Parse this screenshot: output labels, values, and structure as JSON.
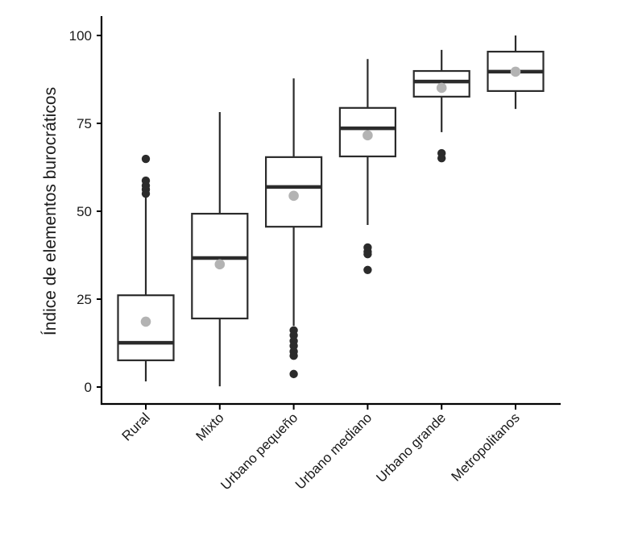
{
  "chart_data": {
    "type": "boxplot",
    "title": "",
    "xlabel": "",
    "ylabel": "Índice de elementos burocráticos",
    "ylim": [
      -5,
      105
    ],
    "yticks": [
      0,
      25,
      50,
      75,
      100
    ],
    "ytick_labels": [
      "0",
      "25",
      "50",
      "75",
      "100"
    ],
    "grid": false,
    "legend": "none",
    "colors": {
      "box_stroke": "#2b2b2b",
      "box_fill": "#ffffff",
      "median": "#2b2b2b",
      "outlier": "#2b2b2b",
      "mean_point": "#b3b3b3",
      "axis": "#000000"
    },
    "categories": [
      "Rural",
      "Mixto",
      "Urbano pequeño",
      "Urbano mediano",
      "Urbano grande",
      "Metropolitanos"
    ],
    "series": [
      {
        "name": "Rural",
        "whisker_low": 1.6,
        "q1": 7.6,
        "median": 12.6,
        "q3": 26.1,
        "whisker_high": 53.9,
        "mean": 18.6,
        "outliers": [
          55.0,
          56.2,
          57.3,
          58.7,
          64.9
        ]
      },
      {
        "name": "Mixto",
        "whisker_low": 0.2,
        "q1": 19.5,
        "median": 36.7,
        "q3": 49.3,
        "whisker_high": 78.2,
        "mean": 34.9,
        "outliers": []
      },
      {
        "name": "Urbano pequeño",
        "whisker_low": 17.4,
        "q1": 45.6,
        "median": 56.9,
        "q3": 65.4,
        "whisker_high": 87.8,
        "mean": 54.4,
        "outliers": [
          16.1,
          14.7,
          13.1,
          11.7,
          10.1,
          8.9,
          3.7
        ]
      },
      {
        "name": "Urbano mediano",
        "whisker_low": 46.1,
        "q1": 65.6,
        "median": 73.6,
        "q3": 79.4,
        "whisker_high": 93.3,
        "mean": 71.6,
        "outliers": [
          39.7,
          38.5,
          37.8,
          33.3
        ]
      },
      {
        "name": "Urbano grande",
        "whisker_low": 72.5,
        "q1": 82.6,
        "median": 86.9,
        "q3": 89.9,
        "whisker_high": 95.9,
        "mean": 85.1,
        "outliers": [
          66.5,
          65.1
        ]
      },
      {
        "name": "Metropolitanos",
        "whisker_low": 79.1,
        "q1": 84.2,
        "median": 89.7,
        "q3": 95.4,
        "whisker_high": 100,
        "mean": 89.7,
        "outliers": []
      }
    ]
  }
}
